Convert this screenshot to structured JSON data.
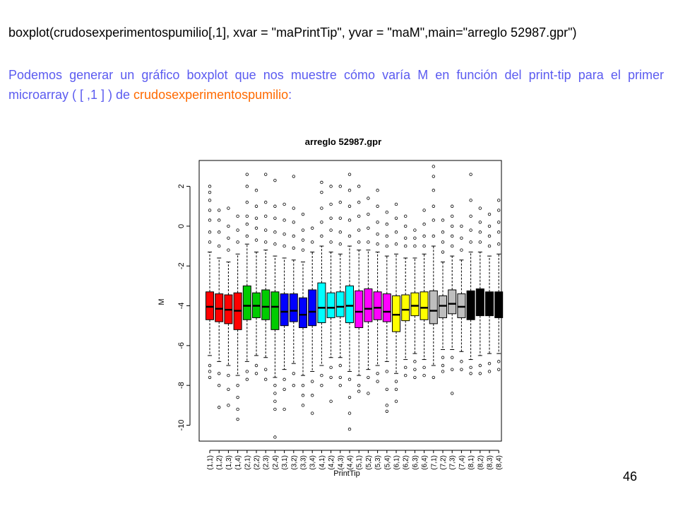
{
  "slide": {
    "code_text": "boxplot(crudosexperimentospumilio[,1],  xvar = \"maPrintTip\", yvar = \"maM\",main=\"arreglo 52987.gpr\")",
    "description_text": "Podemos generar un gráfico boxplot que nos muestre cómo varía M en función del print-tip para el primer microarray  ( [ ,1 ] ) de ",
    "description_highlight": "crudosexperimentospumilio",
    "description_tail": ":",
    "page_number": "46",
    "colors": {
      "code": "#000000",
      "description": "#5b5bf0",
      "highlight": "#ff6a00"
    }
  },
  "chart_data": {
    "type": "boxplot",
    "title": "arreglo 52987.gpr",
    "xlabel": "PrintTip",
    "ylabel": "M",
    "ylim": [
      -10.8,
      3.3
    ],
    "yticks": [
      -10,
      -8,
      -6,
      -4,
      -2,
      0,
      2
    ],
    "grid": false,
    "categories": [
      "(1,1)",
      "(1,2)",
      "(1,3)",
      "(1,4)",
      "(2,1)",
      "(2,2)",
      "(2,3)",
      "(2,4)",
      "(3,1)",
      "(3,2)",
      "(3,3)",
      "(3,4)",
      "(4,1)",
      "(4,2)",
      "(4,3)",
      "(4,4)",
      "(5,1)",
      "(5,2)",
      "(5,3)",
      "(5,4)",
      "(6,1)",
      "(6,2)",
      "(6,3)",
      "(6,4)",
      "(7,1)",
      "(7,2)",
      "(7,3)",
      "(7,4)",
      "(8,1)",
      "(8,2)",
      "(8,3)",
      "(8,4)"
    ],
    "group_colors": [
      "#ff0000",
      "#ff0000",
      "#ff0000",
      "#ff0000",
      "#00cc00",
      "#00cc00",
      "#00cc00",
      "#00cc00",
      "#0000ff",
      "#0000ff",
      "#0000ff",
      "#0000ff",
      "#00ffff",
      "#00ffff",
      "#00ffff",
      "#00ffff",
      "#ff00ff",
      "#ff00ff",
      "#ff00ff",
      "#ff00ff",
      "#ffff00",
      "#ffff00",
      "#ffff00",
      "#ffff00",
      "#bebebe",
      "#bebebe",
      "#bebebe",
      "#bebebe",
      "#000000",
      "#000000",
      "#000000",
      "#000000"
    ],
    "boxes": [
      {
        "q1": -4.7,
        "median": -4.05,
        "q3": -3.3,
        "whisker_low": -6.5,
        "whisker_high": -1.3,
        "outliers_low": [
          -7.0,
          -7.3,
          -7.6
        ],
        "outliers_high": [
          -0.8,
          -0.3,
          0.3,
          0.8,
          1.3,
          1.7,
          2.0
        ]
      },
      {
        "q1": -4.8,
        "median": -4.15,
        "q3": -3.4,
        "whisker_low": -6.8,
        "whisker_high": -1.6,
        "outliers_low": [
          -7.4,
          -8.0,
          -9.1
        ],
        "outliers_high": [
          -1.0,
          -0.3,
          0.3,
          0.8
        ]
      },
      {
        "q1": -4.9,
        "median": -4.2,
        "q3": -3.45,
        "whisker_low": -7.0,
        "whisker_high": -1.8,
        "outliers_low": [
          -7.5,
          -8.2,
          -9.0
        ],
        "outliers_high": [
          -1.2,
          -0.6,
          0.0,
          0.9
        ]
      },
      {
        "q1": -5.2,
        "median": -4.25,
        "q3": -3.35,
        "whisker_low": -7.5,
        "whisker_high": -1.4,
        "outliers_low": [
          -8.0,
          -8.6,
          -9.2,
          -9.7
        ],
        "outliers_high": [
          -0.8,
          -0.2,
          0.5
        ]
      },
      {
        "q1": -4.7,
        "median": -4.0,
        "q3": -3.0,
        "whisker_low": -6.8,
        "whisker_high": -0.9,
        "outliers_low": [
          -7.3,
          -7.7
        ],
        "outliers_high": [
          -0.5,
          0.1,
          0.5,
          1.2,
          2.0,
          2.6
        ]
      },
      {
        "q1": -4.6,
        "median": -4.0,
        "q3": -3.35,
        "whisker_low": -6.5,
        "whisker_high": -1.3,
        "outliers_low": [
          -7.0,
          -7.4
        ],
        "outliers_high": [
          -0.7,
          -0.1,
          0.4,
          1.0,
          1.8
        ]
      },
      {
        "q1": -4.7,
        "median": -4.05,
        "q3": -3.2,
        "whisker_low": -6.6,
        "whisker_high": -1.2,
        "outliers_low": [
          -7.2,
          -7.7
        ],
        "outliers_high": [
          -0.8,
          -0.2,
          0.5,
          1.2,
          2.6
        ]
      },
      {
        "q1": -5.2,
        "median": -4.05,
        "q3": -3.3,
        "whisker_low": -7.6,
        "whisker_high": -1.5,
        "outliers_low": [
          -8.0,
          -8.4,
          -8.8,
          -9.2,
          -10.6
        ],
        "outliers_high": [
          -0.9,
          -0.3,
          0.4,
          1.0,
          2.3
        ]
      },
      {
        "q1": -5.0,
        "median": -4.3,
        "q3": -3.4,
        "whisker_low": -7.2,
        "whisker_high": -1.6,
        "outliers_low": [
          -7.7,
          -8.2,
          -9.2
        ],
        "outliers_high": [
          -1.0,
          -0.4,
          0.3,
          1.1
        ]
      },
      {
        "q1": -4.8,
        "median": -4.25,
        "q3": -3.4,
        "whisker_low": -6.9,
        "whisker_high": -1.7,
        "outliers_low": [
          -7.4,
          -8.0
        ],
        "outliers_high": [
          -1.1,
          -0.5,
          0.2,
          0.9,
          2.5
        ]
      },
      {
        "q1": -5.1,
        "median": -4.45,
        "q3": -3.6,
        "whisker_low": -7.5,
        "whisker_high": -1.8,
        "outliers_low": [
          -8.0,
          -8.5,
          -9.0
        ],
        "outliers_high": [
          -1.2,
          -0.7,
          -0.2,
          0.6
        ]
      },
      {
        "q1": -5.0,
        "median": -4.3,
        "q3": -3.2,
        "whisker_low": -7.3,
        "whisker_high": -1.3,
        "outliers_low": [
          -7.8,
          -8.5,
          -9.4
        ],
        "outliers_high": [
          -0.8,
          -0.1
        ]
      },
      {
        "q1": -4.85,
        "median": -4.1,
        "q3": -2.85,
        "whisker_low": -7.0,
        "whisker_high": -1.0,
        "outliers_low": [
          -7.5,
          -8.0
        ],
        "outliers_high": [
          -0.5,
          0.2,
          0.9,
          1.7,
          2.2
        ]
      },
      {
        "q1": -4.6,
        "median": -4.1,
        "q3": -3.35,
        "whisker_low": -6.6,
        "whisker_high": -1.3,
        "outliers_low": [
          -7.1,
          -7.6,
          -8.8
        ],
        "outliers_high": [
          -0.8,
          -0.2,
          0.4,
          1.1,
          2.0
        ]
      },
      {
        "q1": -4.55,
        "median": -4.05,
        "q3": -3.3,
        "whisker_low": -6.6,
        "whisker_high": -1.4,
        "outliers_low": [
          -7.0,
          -7.6,
          -8.0
        ],
        "outliers_high": [
          -0.9,
          -0.3,
          0.4,
          1.2,
          2.0
        ]
      },
      {
        "q1": -4.85,
        "median": -4.0,
        "q3": -3.0,
        "whisker_low": -7.3,
        "whisker_high": -1.0,
        "outliers_low": [
          -7.7,
          -8.6,
          -9.4,
          -10.2
        ],
        "outliers_high": [
          -0.5,
          0.3,
          1.0,
          1.8,
          2.6
        ]
      },
      {
        "q1": -5.1,
        "median": -4.3,
        "q3": -3.25,
        "whisker_low": -7.5,
        "whisker_high": -1.2,
        "outliers_low": [
          -8.0,
          -8.3
        ],
        "outliers_high": [
          -0.8,
          -0.2,
          0.5,
          1.2,
          2.0
        ]
      },
      {
        "q1": -4.8,
        "median": -4.15,
        "q3": -3.15,
        "whisker_low": -7.2,
        "whisker_high": -1.2,
        "outliers_low": [
          -7.6,
          -8.4
        ],
        "outliers_high": [
          -0.8,
          -0.1,
          0.6,
          1.4
        ]
      },
      {
        "q1": -4.7,
        "median": -4.1,
        "q3": -3.3,
        "whisker_low": -7.0,
        "whisker_high": -1.3,
        "outliers_low": [
          -7.4,
          -7.8
        ],
        "outliers_high": [
          -0.9,
          -0.4,
          0.2,
          1.0,
          1.8
        ]
      },
      {
        "q1": -4.8,
        "median": -4.3,
        "q3": -3.4,
        "whisker_low": -6.8,
        "whisker_high": -1.5,
        "outliers_low": [
          -7.3,
          -8.2,
          -9.0,
          -9.3
        ],
        "outliers_high": [
          -1.0,
          -0.5,
          0.1,
          0.7
        ]
      },
      {
        "q1": -5.3,
        "median": -4.45,
        "q3": -3.5,
        "whisker_low": -7.4,
        "whisker_high": -1.4,
        "outliers_low": [
          -7.8,
          -8.2,
          -8.8
        ],
        "outliers_high": [
          -0.9,
          -0.3,
          0.4,
          1.1
        ]
      },
      {
        "q1": -4.75,
        "median": -4.2,
        "q3": -3.45,
        "whisker_low": -6.7,
        "whisker_high": -1.6,
        "outliers_low": [
          -7.1,
          -7.5
        ],
        "outliers_high": [
          -1.0,
          -0.6,
          0.0,
          0.5
        ]
      },
      {
        "q1": -4.5,
        "median": -4.0,
        "q3": -3.35,
        "whisker_low": -6.4,
        "whisker_high": -1.6,
        "outliers_low": [
          -6.8,
          -7.2,
          -7.6
        ],
        "outliers_high": [
          -1.0,
          -0.6,
          -0.2
        ]
      },
      {
        "q1": -4.7,
        "median": -4.1,
        "q3": -3.3,
        "whisker_low": -6.7,
        "whisker_high": -1.4,
        "outliers_low": [
          -7.1,
          -7.5
        ],
        "outliers_high": [
          -1.0,
          -0.5,
          0.1,
          0.8
        ]
      },
      {
        "q1": -4.9,
        "median": -4.25,
        "q3": -3.25,
        "whisker_low": -7.0,
        "whisker_high": -1.0,
        "outliers_low": [
          -7.6
        ],
        "outliers_high": [
          -0.5,
          0.3,
          1.0,
          1.8,
          2.5,
          3.0
        ]
      },
      {
        "q1": -4.6,
        "median": -4.0,
        "q3": -3.5,
        "whisker_low": -6.2,
        "whisker_high": -1.8,
        "outliers_low": [
          -6.6,
          -7.0,
          -7.3
        ],
        "outliers_high": [
          -1.3,
          -0.8,
          -0.3,
          0.3
        ]
      },
      {
        "q1": -4.4,
        "median": -3.9,
        "q3": -3.2,
        "whisker_low": -6.2,
        "whisker_high": -1.5,
        "outliers_low": [
          -6.6,
          -7.2,
          -8.4
        ],
        "outliers_high": [
          -1.0,
          -0.5,
          0.0,
          0.5,
          1.0
        ]
      },
      {
        "q1": -4.6,
        "median": -4.05,
        "q3": -3.4,
        "whisker_low": -6.3,
        "whisker_high": -1.7,
        "outliers_low": [
          -6.8,
          -7.2
        ],
        "outliers_high": [
          -1.2,
          -0.6,
          0.0
        ]
      },
      {
        "q1": -4.7,
        "median": -3.95,
        "q3": -3.25,
        "whisker_low": -6.7,
        "whisker_high": -1.3,
        "outliers_low": [
          -7.1,
          -7.4
        ],
        "outliers_high": [
          -0.8,
          -0.2,
          0.5,
          1.3,
          2.6
        ]
      },
      {
        "q1": -4.5,
        "median": -3.9,
        "q3": -3.15,
        "whisker_low": -6.5,
        "whisker_high": -1.3,
        "outliers_low": [
          -7.0,
          -7.4
        ],
        "outliers_high": [
          -0.8,
          -0.3,
          0.2,
          0.9
        ]
      },
      {
        "q1": -4.5,
        "median": -3.9,
        "q3": -3.3,
        "whisker_low": -6.4,
        "whisker_high": -1.5,
        "outliers_low": [
          -6.9,
          -7.3
        ],
        "outliers_high": [
          -1.0,
          -0.5,
          0.0,
          0.6
        ]
      },
      {
        "q1": -4.6,
        "median": -3.95,
        "q3": -3.3,
        "whisker_low": -6.4,
        "whisker_high": -1.4,
        "outliers_low": [
          -6.8,
          -7.2
        ],
        "outliers_high": [
          -0.9,
          -0.3,
          0.2,
          0.8,
          1.3
        ]
      }
    ]
  }
}
